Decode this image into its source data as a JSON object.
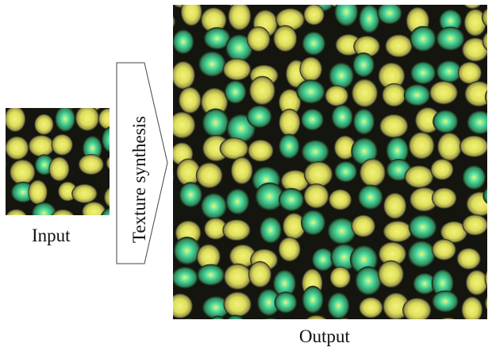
{
  "input": {
    "label": "Input"
  },
  "process": {
    "label": "Texture synthesis"
  },
  "output": {
    "label": "Output"
  },
  "palette": {
    "border": "#15150f",
    "cell_outer": "#9c9a4e",
    "cell_mid": "#dede5a",
    "cell_core": "#f2f27a",
    "cell_cyan": "#4fe0a2",
    "arrow_stroke": "#444444"
  }
}
